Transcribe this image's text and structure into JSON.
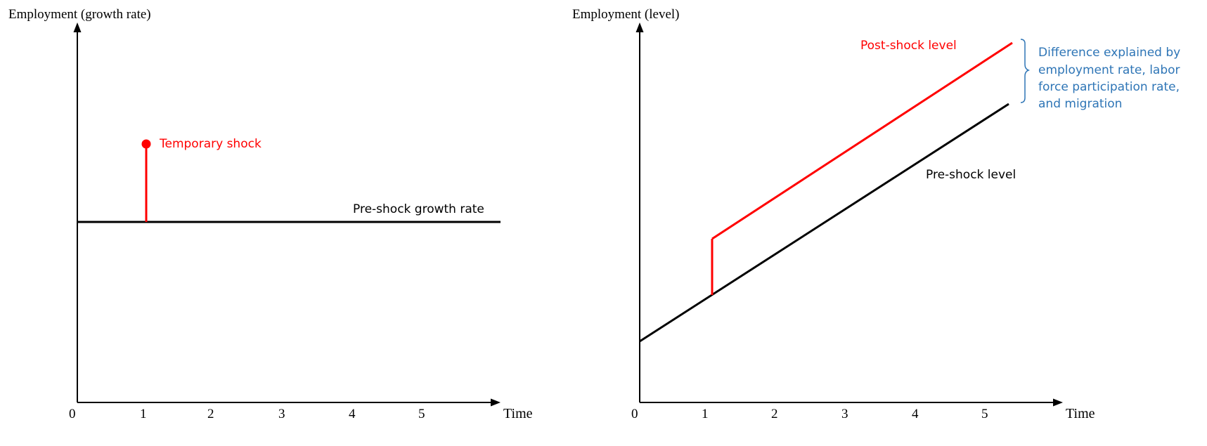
{
  "colors": {
    "axis": "#000000",
    "baseline": "#000000",
    "shock": "#ff0000",
    "note": "#2e75b6"
  },
  "left_panel": {
    "y_axis_label": "Employment (growth rate)",
    "x_axis_label": "Time",
    "origin_label": "0",
    "x_ticks": [
      "1",
      "2",
      "3",
      "4",
      "5"
    ],
    "baseline_label": "Pre-shock growth rate",
    "shock_label": "Temporary shock"
  },
  "right_panel": {
    "y_axis_label": "Employment (level)",
    "x_axis_label": "Time",
    "origin_label": "0",
    "x_ticks": [
      "1",
      "2",
      "3",
      "4",
      "5"
    ],
    "pre_label": "Pre-shock level",
    "post_label": "Post-shock level",
    "bracket_icon": "right-brace",
    "note_lines": [
      "Difference explained by",
      "employment rate, labor",
      "force participation rate,",
      "and migration"
    ]
  }
}
